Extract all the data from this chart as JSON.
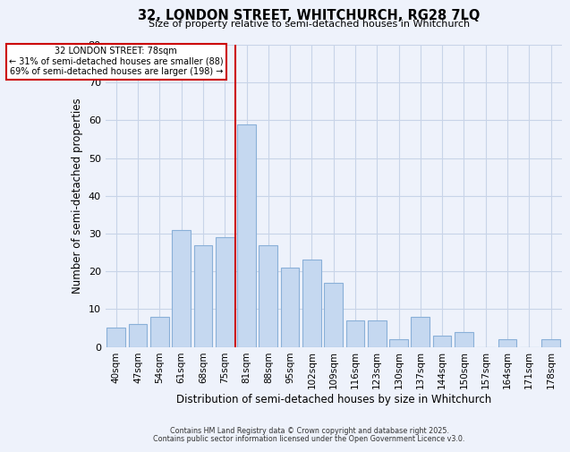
{
  "title": "32, LONDON STREET, WHITCHURCH, RG28 7LQ",
  "subtitle": "Size of property relative to semi-detached houses in Whitchurch",
  "xlabel": "Distribution of semi-detached houses by size in Whitchurch",
  "ylabel": "Number of semi-detached properties",
  "bar_labels": [
    "40sqm",
    "47sqm",
    "54sqm",
    "61sqm",
    "68sqm",
    "75sqm",
    "81sqm",
    "88sqm",
    "95sqm",
    "102sqm",
    "109sqm",
    "116sqm",
    "123sqm",
    "130sqm",
    "137sqm",
    "144sqm",
    "150sqm",
    "157sqm",
    "164sqm",
    "171sqm",
    "178sqm"
  ],
  "bar_values": [
    5,
    6,
    8,
    31,
    27,
    29,
    59,
    27,
    21,
    23,
    17,
    7,
    7,
    2,
    8,
    3,
    4,
    0,
    2,
    0,
    2
  ],
  "bar_color": "#c5d8f0",
  "bar_edge_color": "#8ab0d8",
  "ylim": [
    0,
    80
  ],
  "yticks": [
    0,
    10,
    20,
    30,
    40,
    50,
    60,
    70,
    80
  ],
  "red_line_index": 6,
  "red_line_color": "#cc0000",
  "annotation_title": "32 LONDON STREET: 78sqm",
  "annotation_line1": "← 31% of semi-detached houses are smaller (88)",
  "annotation_line2": "69% of semi-detached houses are larger (198) →",
  "background_color": "#eef2fb",
  "grid_color": "#c8d4e8",
  "footer1": "Contains HM Land Registry data © Crown copyright and database right 2025.",
  "footer2": "Contains public sector information licensed under the Open Government Licence v3.0."
}
